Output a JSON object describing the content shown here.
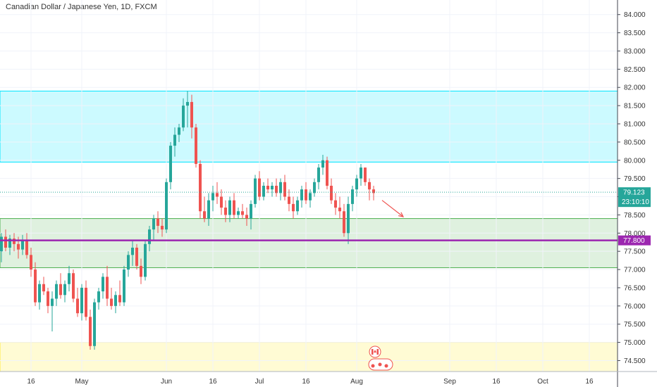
{
  "chart_data": {
    "type": "candlestick",
    "title": "Canadian Dollar / Japanese Yen, 1D, FXCM",
    "ylim": [
      74.2,
      84.4
    ],
    "y_ticks": [
      {
        "value": 84.0,
        "label": "84.000"
      },
      {
        "value": 83.5,
        "label": "83.500"
      },
      {
        "value": 83.0,
        "label": "83.000"
      },
      {
        "value": 82.5,
        "label": "82.500"
      },
      {
        "value": 82.0,
        "label": "82.000"
      },
      {
        "value": 81.5,
        "label": "81.500"
      },
      {
        "value": 81.0,
        "label": "81.000"
      },
      {
        "value": 80.5,
        "label": "80.500"
      },
      {
        "value": 80.0,
        "label": "80.000"
      },
      {
        "value": 79.5,
        "label": "79.500"
      },
      {
        "value": 79.0,
        "label": "79.000"
      },
      {
        "value": 78.5,
        "label": "78.500"
      },
      {
        "value": 78.0,
        "label": "78.000"
      },
      {
        "value": 77.5,
        "label": "77.500"
      },
      {
        "value": 77.0,
        "label": "77.000"
      },
      {
        "value": 76.5,
        "label": "76.500"
      },
      {
        "value": 76.0,
        "label": "76.000"
      },
      {
        "value": 75.5,
        "label": "75.500"
      },
      {
        "value": 75.0,
        "label": "75.000"
      },
      {
        "value": 74.5,
        "label": "74.500"
      }
    ],
    "x_ticks": [
      {
        "label": "16",
        "bar": 7
      },
      {
        "label": "May",
        "bar": 19
      },
      {
        "label": "Jun",
        "bar": 39
      },
      {
        "label": "16",
        "bar": 50
      },
      {
        "label": "Jul",
        "bar": 61
      },
      {
        "label": "16",
        "bar": 72
      },
      {
        "label": "Aug",
        "bar": 84
      },
      {
        "label": "Sep",
        "bar": 106
      },
      {
        "label": "16",
        "bar": 117
      },
      {
        "label": "Oct",
        "bar": 128
      },
      {
        "label": "16",
        "bar": 139
      }
    ],
    "colors": {
      "up": "#26a69a",
      "down": "#ef5350",
      "level_line": "#9c27b0",
      "price_badge": "#26a69a",
      "cyan_zone": "#00e5ff",
      "green_zone": "#4caf50",
      "yellow_zone": "#ffeb3b",
      "arrow": "#ef5350"
    },
    "zones": [
      {
        "name": "resistance",
        "low": 79.95,
        "high": 81.9,
        "color": "cyan"
      },
      {
        "name": "support",
        "low": 77.05,
        "high": 78.4,
        "color": "green"
      },
      {
        "name": "lower",
        "low": 74.2,
        "high": 75.0,
        "color": "yellow"
      }
    ],
    "level_line": {
      "value": 77.8,
      "label": "77.800"
    },
    "last_price": {
      "value": 79.123,
      "label": "79.123",
      "countdown": "23:10:10"
    },
    "arrow": {
      "from_bar": 90,
      "from_value": 78.9,
      "to_bar": 95,
      "to_value": 78.45
    },
    "candles": [
      [
        77.5,
        78.0,
        77.2,
        77.9
      ],
      [
        77.9,
        78.1,
        77.5,
        77.6
      ],
      [
        77.6,
        77.95,
        77.4,
        77.85
      ],
      [
        77.85,
        78.0,
        77.5,
        77.7
      ],
      [
        77.7,
        77.9,
        77.3,
        77.55
      ],
      [
        77.55,
        77.95,
        77.4,
        77.8
      ],
      [
        77.8,
        78.0,
        77.3,
        77.4
      ],
      [
        77.4,
        77.6,
        76.8,
        77.0
      ],
      [
        77.0,
        77.2,
        76.0,
        76.1
      ],
      [
        76.1,
        76.7,
        75.9,
        76.6
      ],
      [
        76.6,
        76.8,
        76.3,
        76.4
      ],
      [
        76.4,
        76.5,
        75.8,
        76.0
      ],
      [
        76.0,
        76.4,
        75.3,
        76.2
      ],
      [
        76.2,
        76.7,
        76.0,
        76.6
      ],
      [
        76.6,
        76.9,
        76.2,
        76.3
      ],
      [
        76.3,
        76.7,
        76.1,
        76.6
      ],
      [
        76.6,
        77.1,
        76.4,
        76.9
      ],
      [
        76.9,
        77.0,
        76.1,
        76.2
      ],
      [
        76.2,
        76.5,
        75.7,
        75.8
      ],
      [
        75.8,
        76.6,
        75.6,
        76.5
      ],
      [
        76.5,
        76.7,
        75.6,
        75.7
      ],
      [
        75.7,
        75.9,
        74.8,
        74.9
      ],
      [
        74.9,
        76.2,
        74.8,
        76.1
      ],
      [
        76.1,
        76.5,
        75.9,
        76.4
      ],
      [
        76.4,
        76.9,
        76.2,
        76.8
      ],
      [
        76.8,
        77.1,
        76.0,
        76.2
      ],
      [
        76.2,
        76.5,
        75.9,
        76.0
      ],
      [
        76.0,
        76.4,
        75.8,
        76.3
      ],
      [
        76.3,
        76.7,
        76.0,
        76.1
      ],
      [
        76.1,
        77.1,
        76.0,
        77.0
      ],
      [
        77.0,
        77.5,
        76.8,
        77.4
      ],
      [
        77.4,
        77.8,
        77.1,
        77.6
      ],
      [
        77.6,
        77.7,
        77.0,
        77.1
      ],
      [
        77.1,
        77.3,
        76.6,
        76.8
      ],
      [
        76.8,
        77.8,
        76.7,
        77.7
      ],
      [
        77.7,
        78.2,
        77.5,
        78.1
      ],
      [
        78.1,
        78.5,
        77.8,
        78.4
      ],
      [
        78.4,
        78.6,
        78.0,
        78.2
      ],
      [
        78.2,
        78.4,
        77.9,
        78.1
      ],
      [
        78.1,
        79.5,
        78.0,
        79.4
      ],
      [
        79.4,
        80.5,
        79.2,
        80.4
      ],
      [
        80.4,
        80.9,
        80.1,
        80.7
      ],
      [
        80.7,
        81.0,
        80.5,
        80.9
      ],
      [
        80.9,
        81.7,
        80.8,
        81.5
      ],
      [
        81.5,
        81.9,
        80.9,
        81.6
      ],
      [
        81.6,
        81.8,
        80.6,
        80.9
      ],
      [
        80.9,
        81.0,
        79.8,
        79.9
      ],
      [
        79.9,
        80.0,
        78.4,
        78.6
      ],
      [
        78.6,
        79.0,
        78.3,
        78.4
      ],
      [
        78.4,
        79.1,
        78.2,
        78.9
      ],
      [
        78.9,
        79.3,
        78.6,
        79.1
      ],
      [
        79.1,
        79.4,
        78.8,
        79.0
      ],
      [
        79.0,
        79.2,
        78.5,
        78.7
      ],
      [
        78.7,
        78.9,
        78.3,
        78.5
      ],
      [
        78.5,
        79.0,
        78.3,
        78.9
      ],
      [
        78.9,
        79.1,
        78.4,
        78.5
      ],
      [
        78.5,
        78.7,
        78.4,
        78.6
      ],
      [
        78.6,
        78.8,
        78.4,
        78.5
      ],
      [
        78.5,
        78.7,
        78.2,
        78.4
      ],
      [
        78.4,
        78.9,
        78.1,
        78.8
      ],
      [
        78.8,
        79.6,
        78.7,
        79.5
      ],
      [
        79.5,
        79.7,
        78.9,
        79.0
      ],
      [
        79.0,
        79.4,
        78.9,
        79.3
      ],
      [
        79.3,
        79.5,
        79.1,
        79.2
      ],
      [
        79.2,
        79.4,
        79.0,
        79.3
      ],
      [
        79.3,
        79.5,
        79.0,
        79.1
      ],
      [
        79.1,
        79.5,
        78.9,
        79.4
      ],
      [
        79.4,
        79.6,
        78.9,
        79.0
      ],
      [
        79.0,
        79.2,
        78.6,
        78.8
      ],
      [
        78.8,
        79.0,
        78.4,
        78.6
      ],
      [
        78.6,
        79.0,
        78.5,
        78.9
      ],
      [
        78.9,
        79.3,
        78.7,
        79.2
      ],
      [
        79.2,
        79.4,
        78.8,
        78.9
      ],
      [
        78.9,
        79.2,
        78.7,
        79.1
      ],
      [
        79.1,
        79.5,
        79.0,
        79.4
      ],
      [
        79.4,
        79.9,
        79.2,
        79.8
      ],
      [
        79.8,
        80.15,
        79.6,
        80.0
      ],
      [
        80.0,
        80.1,
        79.2,
        79.3
      ],
      [
        79.3,
        79.5,
        78.8,
        78.9
      ],
      [
        78.9,
        79.1,
        78.5,
        78.7
      ],
      [
        78.7,
        79.0,
        78.4,
        78.6
      ],
      [
        78.6,
        78.8,
        77.9,
        78.0
      ],
      [
        78.0,
        79.0,
        77.7,
        78.8
      ],
      [
        78.8,
        79.3,
        78.6,
        79.2
      ],
      [
        79.2,
        79.6,
        79.0,
        79.5
      ],
      [
        79.5,
        79.9,
        79.3,
        79.8
      ],
      [
        79.8,
        79.8,
        79.3,
        79.4
      ],
      [
        79.4,
        79.5,
        78.9,
        79.2
      ],
      [
        79.2,
        79.3,
        78.9,
        79.1
      ]
    ]
  }
}
